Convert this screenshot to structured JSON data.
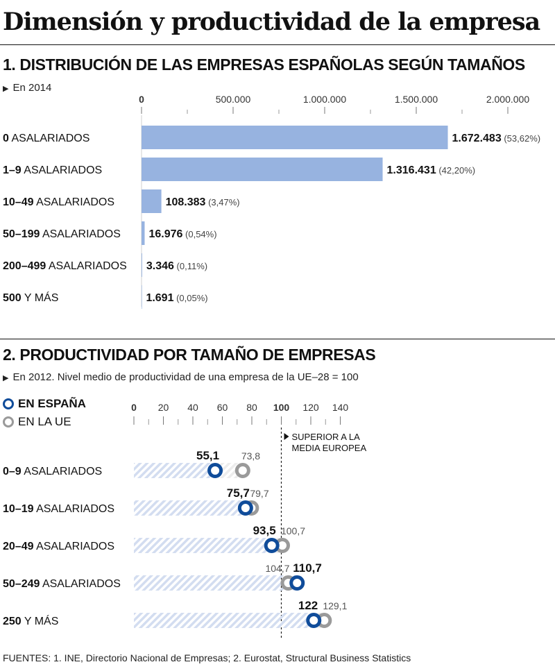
{
  "title": "Dimensión y productividad de la empresa",
  "section1": {
    "title": "1. DISTRIBUCIÓN DE LAS EMPRESAS ESPAÑOLAS SEGÚN TAMAÑOS",
    "subtitle": "En 2014"
  },
  "section2": {
    "title": "2. PRODUCTIVIDAD POR TAMAÑO DE EMPRESAS",
    "subtitle": "En 2012. Nivel medio de productividad de una empresa de la UE–28 = 100",
    "legend_spain": "EN ESPAÑA",
    "legend_ue": "EN LA UE"
  },
  "sources": "FUENTES: 1. INE, Directorio Nacional de Empresas; 2. Eurostat, Structural Business Statistics",
  "colors": {
    "bar": "#97b3e0",
    "spain": "#0f4c9a",
    "ue": "#9a9a9a",
    "stripe": "#d3ddf0"
  },
  "chart_data": [
    {
      "type": "bar",
      "orientation": "horizontal",
      "categories": [
        {
          "num": "0",
          "rest": " ASALARIADOS"
        },
        {
          "num": "1–9",
          "rest": " ASALARIADOS"
        },
        {
          "num": "10–49",
          "rest": " ASALARIADOS"
        },
        {
          "num": "50–199",
          "rest": " ASALARIADOS"
        },
        {
          "num": "200–499",
          "rest": " ASALARIADOS"
        },
        {
          "num": "500",
          "rest": " Y MÁS"
        }
      ],
      "values": [
        1672483,
        1316431,
        108383,
        16976,
        3346,
        1691
      ],
      "value_labels": [
        "1.672.483",
        "1.316.431",
        "108.383",
        "16.976",
        "3.346",
        "1.691"
      ],
      "pct_labels": [
        "(53,62%)",
        "(42,20%)",
        "(3,47%)",
        "(0,54%)",
        "(0,11%)",
        "(0,05%)"
      ],
      "xlim": [
        0,
        2000000
      ],
      "ticks": [
        {
          "value": 0,
          "label": "0"
        },
        {
          "value": 500000,
          "label": "500.000"
        },
        {
          "value": 1000000,
          "label": "1.000.000"
        },
        {
          "value": 1500000,
          "label": "1.500.000"
        },
        {
          "value": 2000000,
          "label": "2.000.000"
        }
      ]
    },
    {
      "type": "scatter",
      "orientation": "horizontal",
      "categories": [
        {
          "num": "0–9",
          "rest": " ASALARIADOS"
        },
        {
          "num": "10–19",
          "rest": " ASALARIADOS"
        },
        {
          "num": "20–49",
          "rest": " ASALARIADOS"
        },
        {
          "num": "50–249",
          "rest": " ASALARIADOS"
        },
        {
          "num": "250",
          "rest": " Y MÁS"
        }
      ],
      "series": [
        {
          "name": "EN ESPAÑA",
          "values": [
            55.1,
            75.7,
            93.5,
            110.7,
            122
          ],
          "labels": [
            "55,1",
            "75,7",
            "93,5",
            "110,7",
            "122"
          ]
        },
        {
          "name": "EN LA UE",
          "values": [
            73.8,
            79.7,
            100.7,
            104.7,
            129.1
          ],
          "labels": [
            "73,8",
            "79,7",
            "100,7",
            "104,7",
            "129,1"
          ]
        }
      ],
      "xlim": [
        0,
        140
      ],
      "major_ticks": [
        0,
        20,
        40,
        60,
        80,
        100,
        120,
        140
      ],
      "reference_value": 100,
      "reference_label_lines": [
        "SUPERIOR A LA",
        "MEDIA EUROPEA"
      ]
    }
  ]
}
